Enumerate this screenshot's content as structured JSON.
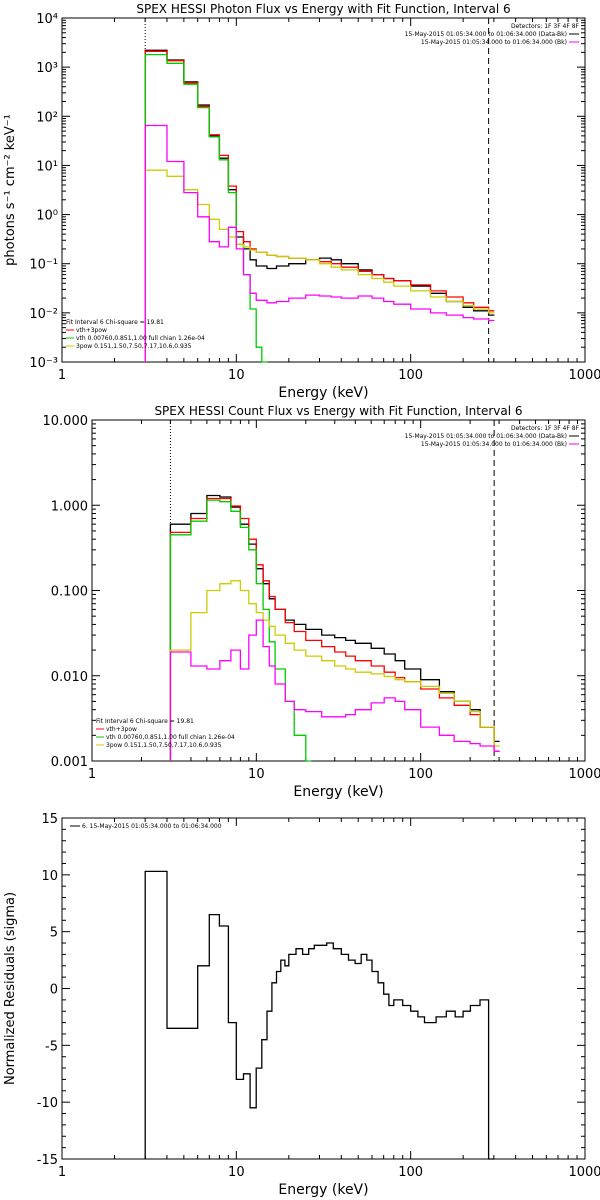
{
  "chart_data": [
    {
      "type": "line",
      "title": "SPEX HESSI Photon Flux vs Energy with Fit Function, Interval 6",
      "xlabel": "Energy (keV)",
      "ylabel": "photons s⁻¹ cm⁻² keV⁻¹",
      "x_scale": "log",
      "y_scale": "log",
      "xlim": [
        1,
        1000
      ],
      "ylim": [
        0.001,
        10000
      ],
      "x_ticks": [
        1,
        10,
        100,
        1000
      ],
      "x_tick_labels": [
        "1",
        "10",
        "100",
        "1000"
      ],
      "y_ticks": [
        0.001,
        0.01,
        0.1,
        1,
        10,
        100,
        1000,
        10000
      ],
      "y_tick_labels": [
        "10⁻³",
        "10⁻²",
        "10⁻¹",
        "10⁰",
        "10¹",
        "10²",
        "10³",
        "10⁴"
      ],
      "vlines": [
        {
          "x": 3,
          "style": "dotted"
        },
        {
          "x": 280,
          "style": "dashed"
        }
      ],
      "legend_top": [
        "Detectors: 1F 3F 4F 8F",
        "15-May-2015 01:05:34.000 to 01:06:34.000 (Data-Bk)",
        "15-May-2015 01:05:34.000 to 01:06:34.000 (Bk)"
      ],
      "legend_bottom": [
        "Fit Interval 6   Chi-square = 19.81",
        "vth+3pow",
        "vth 0.00760,0.851,1.00   full chian 1.26e-04",
        "3pow 0.151,1.50,7.50,7.17,10.6,0.935"
      ],
      "series": [
        {
          "color": "#000000",
          "x": [
            3,
            4,
            5,
            6,
            7,
            8,
            9,
            10,
            11,
            12,
            13,
            15,
            17,
            20,
            25,
            30,
            35,
            40,
            50,
            60,
            70,
            80,
            100,
            130,
            160,
            200,
            230,
            280
          ],
          "values": [
            2200,
            1400,
            500,
            170,
            40,
            14,
            3.2,
            0.35,
            0.2,
            0.12,
            0.09,
            0.08,
            0.09,
            0.1,
            0.12,
            0.13,
            0.12,
            0.1,
            0.075,
            0.06,
            0.05,
            0.045,
            0.035,
            0.025,
            0.017,
            0.013,
            0.011,
            0.009
          ]
        },
        {
          "color": "#ff0000",
          "x": [
            3,
            4,
            5,
            6,
            7,
            8,
            9,
            10,
            11,
            12,
            13,
            15,
            17,
            20,
            25,
            30,
            35,
            40,
            50,
            60,
            70,
            80,
            100,
            130,
            160,
            200,
            230,
            280
          ],
          "values": [
            2100,
            1350,
            480,
            160,
            42,
            16,
            3.8,
            0.45,
            0.28,
            0.2,
            0.17,
            0.15,
            0.14,
            0.13,
            0.12,
            0.11,
            0.1,
            0.085,
            0.07,
            0.06,
            0.05,
            0.045,
            0.037,
            0.028,
            0.021,
            0.016,
            0.013,
            0.011
          ]
        },
        {
          "color": "#00cc00",
          "x": [
            3,
            4,
            5,
            6,
            7,
            8,
            9,
            10,
            11,
            12,
            13,
            14
          ],
          "values": [
            1800,
            1200,
            450,
            150,
            38,
            13,
            2.8,
            0.25,
            0.06,
            0.012,
            0.002,
            0.001
          ]
        },
        {
          "color": "#cccc00",
          "x": [
            3,
            4,
            5,
            6,
            7,
            8,
            9,
            10,
            11,
            12,
            13,
            15,
            17,
            20,
            25,
            30,
            35,
            40,
            50,
            60,
            70,
            80,
            100,
            130,
            160,
            200,
            230,
            280
          ],
          "values": [
            8,
            6,
            3.2,
            1.6,
            0.8,
            0.5,
            0.35,
            0.25,
            0.22,
            0.19,
            0.17,
            0.15,
            0.14,
            0.13,
            0.12,
            0.1,
            0.085,
            0.075,
            0.06,
            0.05,
            0.042,
            0.035,
            0.028,
            0.021,
            0.017,
            0.014,
            0.012,
            0.01
          ]
        },
        {
          "color": "#ff00ff",
          "x": [
            3,
            4,
            5,
            6,
            7,
            8,
            9,
            10,
            11,
            12,
            13,
            15,
            17,
            20,
            25,
            30,
            35,
            40,
            50,
            60,
            70,
            80,
            100,
            130,
            160,
            200,
            230,
            280
          ],
          "values": [
            65,
            12,
            2.8,
            0.9,
            0.28,
            0.22,
            0.55,
            0.2,
            0.06,
            0.025,
            0.018,
            0.016,
            0.017,
            0.02,
            0.023,
            0.022,
            0.021,
            0.02,
            0.022,
            0.02,
            0.017,
            0.015,
            0.012,
            0.01,
            0.009,
            0.008,
            0.0075,
            0.007
          ]
        }
      ]
    },
    {
      "type": "line",
      "title": "SPEX HESSI Count Flux vs Energy with Fit Function, Interval 6",
      "xlabel": "Energy (keV)",
      "ylabel": "",
      "x_scale": "log",
      "y_scale": "log",
      "xlim": [
        1,
        1000
      ],
      "ylim": [
        0.001,
        10
      ],
      "x_ticks": [
        1,
        10,
        100,
        1000
      ],
      "x_tick_labels": [
        "1",
        "10",
        "100",
        "1000"
      ],
      "y_ticks": [
        0.001,
        0.01,
        0.1,
        1,
        10
      ],
      "y_tick_labels": [
        "0.001",
        "0.010",
        "0.100",
        "1.000",
        "10.000"
      ],
      "vlines": [
        {
          "x": 3,
          "style": "dotted"
        },
        {
          "x": 280,
          "style": "dashed"
        }
      ],
      "legend_top": [
        "Detectors: 1F 3F 4F 8F",
        "15-May-2015 01:05:34.000 to 01:06:34.000 (Data-Bk)",
        "15-May-2015 01:05:34.000 to 01:06:34.000 (Bk)"
      ],
      "legend_bottom": [
        "Fit Interval 6   Chi-square = 19.81",
        "vth+3pow",
        "vth 0.00760,0.851,1.00   full chian 1.26e-04",
        "3pow 0.151,1.50,7.50,7.17,10.6,0.935"
      ],
      "series": [
        {
          "color": "#000000",
          "x": [
            3,
            4,
            5,
            6,
            7,
            8,
            9,
            10,
            11,
            12,
            13,
            15,
            17,
            20,
            25,
            30,
            35,
            40,
            50,
            60,
            70,
            80,
            100,
            130,
            160,
            200,
            230,
            280
          ],
          "values": [
            0.6,
            0.8,
            1.3,
            1.25,
            0.95,
            0.6,
            0.35,
            0.18,
            0.12,
            0.08,
            0.06,
            0.045,
            0.04,
            0.035,
            0.03,
            0.028,
            0.026,
            0.024,
            0.021,
            0.018,
            0.015,
            0.012,
            0.009,
            0.0065,
            0.005,
            0.004,
            0.0025,
            0.0017
          ]
        },
        {
          "color": "#ff0000",
          "x": [
            3,
            4,
            5,
            6,
            7,
            8,
            9,
            10,
            11,
            12,
            13,
            15,
            17,
            20,
            25,
            30,
            35,
            40,
            50,
            60,
            70,
            80,
            100,
            130,
            160,
            200,
            230,
            280
          ],
          "values": [
            0.48,
            0.7,
            1.2,
            1.2,
            0.98,
            0.7,
            0.4,
            0.2,
            0.13,
            0.085,
            0.06,
            0.042,
            0.033,
            0.026,
            0.022,
            0.019,
            0.017,
            0.015,
            0.013,
            0.011,
            0.0095,
            0.0085,
            0.007,
            0.0055,
            0.0045,
            0.0035,
            0.0025,
            0.0013
          ]
        },
        {
          "color": "#00cc00",
          "x": [
            3,
            4,
            5,
            6,
            7,
            8,
            9,
            10,
            11,
            12,
            13,
            15,
            17,
            20
          ],
          "values": [
            0.45,
            0.65,
            1.15,
            1.1,
            0.85,
            0.55,
            0.3,
            0.12,
            0.06,
            0.025,
            0.012,
            0.005,
            0.002,
            0.001
          ]
        },
        {
          "color": "#cccc00",
          "x": [
            3,
            4,
            5,
            6,
            7,
            8,
            9,
            10,
            11,
            12,
            13,
            15,
            17,
            20,
            25,
            30,
            35,
            40,
            50,
            60,
            70,
            80,
            100,
            130,
            160,
            200,
            230,
            280
          ],
          "values": [
            0.02,
            0.055,
            0.1,
            0.12,
            0.13,
            0.1,
            0.07,
            0.055,
            0.045,
            0.038,
            0.03,
            0.024,
            0.02,
            0.017,
            0.015,
            0.013,
            0.012,
            0.011,
            0.0105,
            0.0098,
            0.009,
            0.0085,
            0.0075,
            0.0062,
            0.005,
            0.0038,
            0.0025,
            0.0015
          ]
        },
        {
          "color": "#ff00ff",
          "x": [
            3,
            4,
            5,
            6,
            7,
            8,
            9,
            10,
            11,
            12,
            13,
            15,
            17,
            20,
            25,
            30,
            35,
            40,
            50,
            60,
            70,
            80,
            100,
            130,
            160,
            200,
            230,
            280
          ],
          "values": [
            0.019,
            0.013,
            0.012,
            0.015,
            0.02,
            0.012,
            0.03,
            0.045,
            0.022,
            0.013,
            0.008,
            0.005,
            0.004,
            0.0038,
            0.0033,
            0.0033,
            0.0035,
            0.004,
            0.0048,
            0.0055,
            0.005,
            0.004,
            0.0025,
            0.002,
            0.0017,
            0.0016,
            0.0015,
            0.0013
          ]
        }
      ]
    },
    {
      "type": "line",
      "title": "",
      "xlabel": "Energy (keV)",
      "ylabel": "Normalized Residuals (sigma)",
      "x_scale": "log",
      "y_scale": "linear",
      "xlim": [
        1,
        1000
      ],
      "ylim": [
        -15,
        15
      ],
      "x_ticks": [
        1,
        10,
        100,
        1000
      ],
      "x_tick_labels": [
        "1",
        "10",
        "100",
        "1000"
      ],
      "y_ticks": [
        -15,
        -10,
        -5,
        0,
        5,
        10,
        15
      ],
      "y_tick_labels": [
        "-15",
        "-10",
        "-5",
        "0",
        "5",
        "10",
        "15"
      ],
      "legend_top": [
        "6. 15-May-2015 01:05:34.000 to 01:06:34.000"
      ],
      "series": [
        {
          "color": "#000000",
          "x": [
            3,
            4,
            5,
            6,
            7,
            8,
            9,
            10,
            11,
            12,
            13,
            14,
            15,
            16,
            17,
            18,
            19,
            20,
            22,
            24,
            26,
            28,
            30,
            33,
            36,
            40,
            44,
            48,
            52,
            56,
            60,
            65,
            70,
            75,
            80,
            90,
            100,
            110,
            120,
            130,
            140,
            150,
            160,
            180,
            200,
            220,
            250,
            280
          ],
          "values": [
            10.3,
            -3.5,
            -3.5,
            2,
            6.5,
            5.5,
            -3,
            -8,
            -7.5,
            -10.5,
            -7,
            -4.5,
            -2,
            0.5,
            1.5,
            2.5,
            2,
            3,
            3.5,
            3,
            3.5,
            3.8,
            3.8,
            4,
            3.5,
            3,
            2.5,
            2.2,
            3,
            2.5,
            1.5,
            0.5,
            -0.5,
            -1.5,
            -1,
            -1.5,
            -2,
            -2.5,
            -3,
            -3,
            -2.5,
            -2.5,
            -2,
            -2.5,
            -2,
            -1.5,
            -1,
            -15
          ]
        }
      ]
    }
  ]
}
